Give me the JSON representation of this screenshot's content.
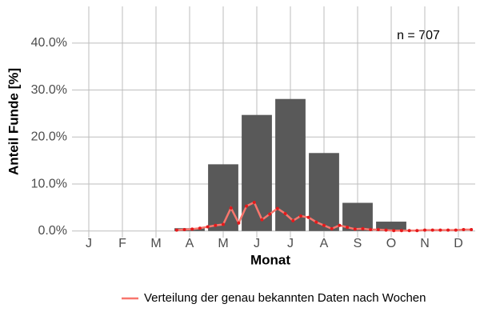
{
  "chart_data": {
    "type": "bar",
    "categories": [
      "J",
      "F",
      "M",
      "A",
      "M",
      "J",
      "J",
      "A",
      "S",
      "O",
      "N",
      "D"
    ],
    "values": [
      0,
      0,
      0,
      0.6,
      14.2,
      24.7,
      28.1,
      16.6,
      6.0,
      2.0,
      0,
      0
    ],
    "color": "#595959",
    "ylim": [
      -1.4,
      47.8
    ],
    "yticks": [
      {
        "value": 0,
        "label": "0.0%"
      },
      {
        "value": 10,
        "label": "10.0%"
      },
      {
        "value": 20,
        "label": "20.0%"
      },
      {
        "value": 30,
        "label": "30.0%"
      },
      {
        "value": 40,
        "label": "40.0%"
      }
    ],
    "grid": true,
    "xlabel": "Monat",
    "ylabel": "Anteil Funde [%]",
    "annotation": "n = 707",
    "legend": "bottom",
    "overlay": {
      "type": "line",
      "name": "Verteilung der genau bekannten Daten nach Wochen",
      "color": "#f8766d",
      "point_color": "#e41a1c",
      "x": [
        14,
        15,
        16,
        17,
        18,
        19,
        20,
        21,
        22,
        23,
        24,
        25,
        26,
        27,
        28,
        29,
        30,
        31,
        32,
        33,
        34,
        35,
        36,
        37,
        38,
        39,
        40,
        41,
        42,
        43,
        44,
        45,
        46,
        47,
        48,
        49,
        50,
        51,
        52
      ],
      "values": [
        0.2,
        0.3,
        0.4,
        0.6,
        0.9,
        1.2,
        1.4,
        4.9,
        1.7,
        5.3,
        6.1,
        2.4,
        3.6,
        4.8,
        3.7,
        2.2,
        3.2,
        2.9,
        1.9,
        1.2,
        0.5,
        1.2,
        0.8,
        0.4,
        0.5,
        0.3,
        0.3,
        0.2,
        0.1,
        0.1,
        0.1,
        0.1,
        0.2,
        0.2,
        0.2,
        0.2,
        0.2,
        0.3,
        0.3
      ]
    }
  }
}
